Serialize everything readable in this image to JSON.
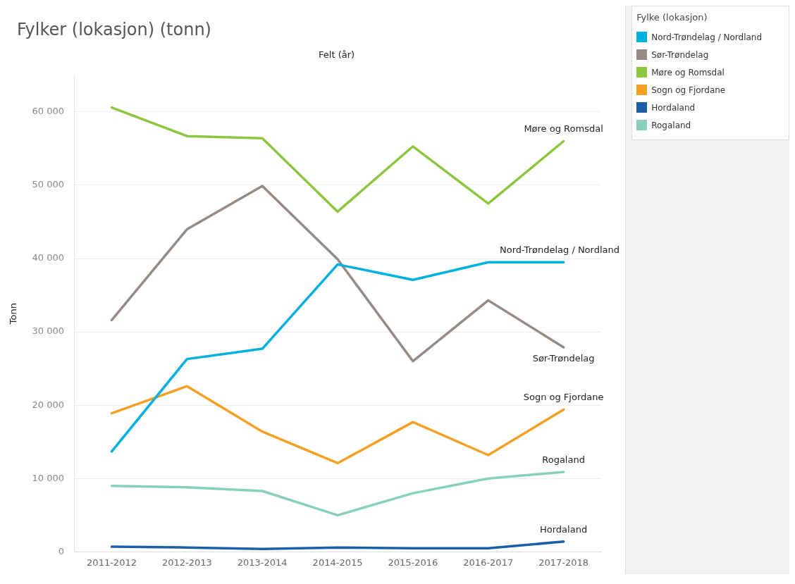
{
  "chart_data": {
    "type": "line",
    "title": "Fylker (lokasjon) (tonn)",
    "xlabel": "Felt (år)",
    "ylabel": "Tonn",
    "legend_title": "Fylke (lokasjon)",
    "categories": [
      "2011-2012",
      "2012-2013",
      "2013-2014",
      "2014-2015",
      "2015-2016",
      "2016-2017",
      "2017-2018"
    ],
    "series": [
      {
        "name": "Nord-Trøndelag / Nordland",
        "color": "#00b0dd",
        "values": [
          13700,
          26300,
          27700,
          39200,
          37100,
          39500,
          39500
        ]
      },
      {
        "name": "Sør-Trøndelag",
        "color": "#978a84",
        "values": [
          31600,
          44000,
          49900,
          39900,
          26000,
          34300,
          27900
        ]
      },
      {
        "name": "Møre og Romsdal",
        "color": "#8cc63f",
        "values": [
          60600,
          56700,
          56400,
          46400,
          55300,
          47500,
          56000
        ]
      },
      {
        "name": "Sogn og Fjordane",
        "color": "#f4a022",
        "values": [
          18900,
          22600,
          16400,
          12100,
          17700,
          13200,
          19400
        ]
      },
      {
        "name": "Hordaland",
        "color": "#1a5fa8",
        "values": [
          700,
          600,
          400,
          600,
          500,
          500,
          1400
        ]
      },
      {
        "name": "Rogaland",
        "color": "#86d0bd",
        "values": [
          9000,
          8800,
          8300,
          5000,
          8000,
          10000,
          10900
        ]
      }
    ],
    "ylim": [
      0,
      65000
    ],
    "yticks": [
      {
        "value": 0,
        "label": "0"
      },
      {
        "value": 10000,
        "label": "10 000"
      },
      {
        "value": 20000,
        "label": "20 000"
      },
      {
        "value": 30000,
        "label": "30 000"
      },
      {
        "value": 40000,
        "label": "40 000"
      },
      {
        "value": 50000,
        "label": "50 000"
      },
      {
        "value": 60000,
        "label": "60 000"
      }
    ],
    "grid": "y",
    "legend": "right",
    "marker": "none",
    "line_style": "solid"
  }
}
